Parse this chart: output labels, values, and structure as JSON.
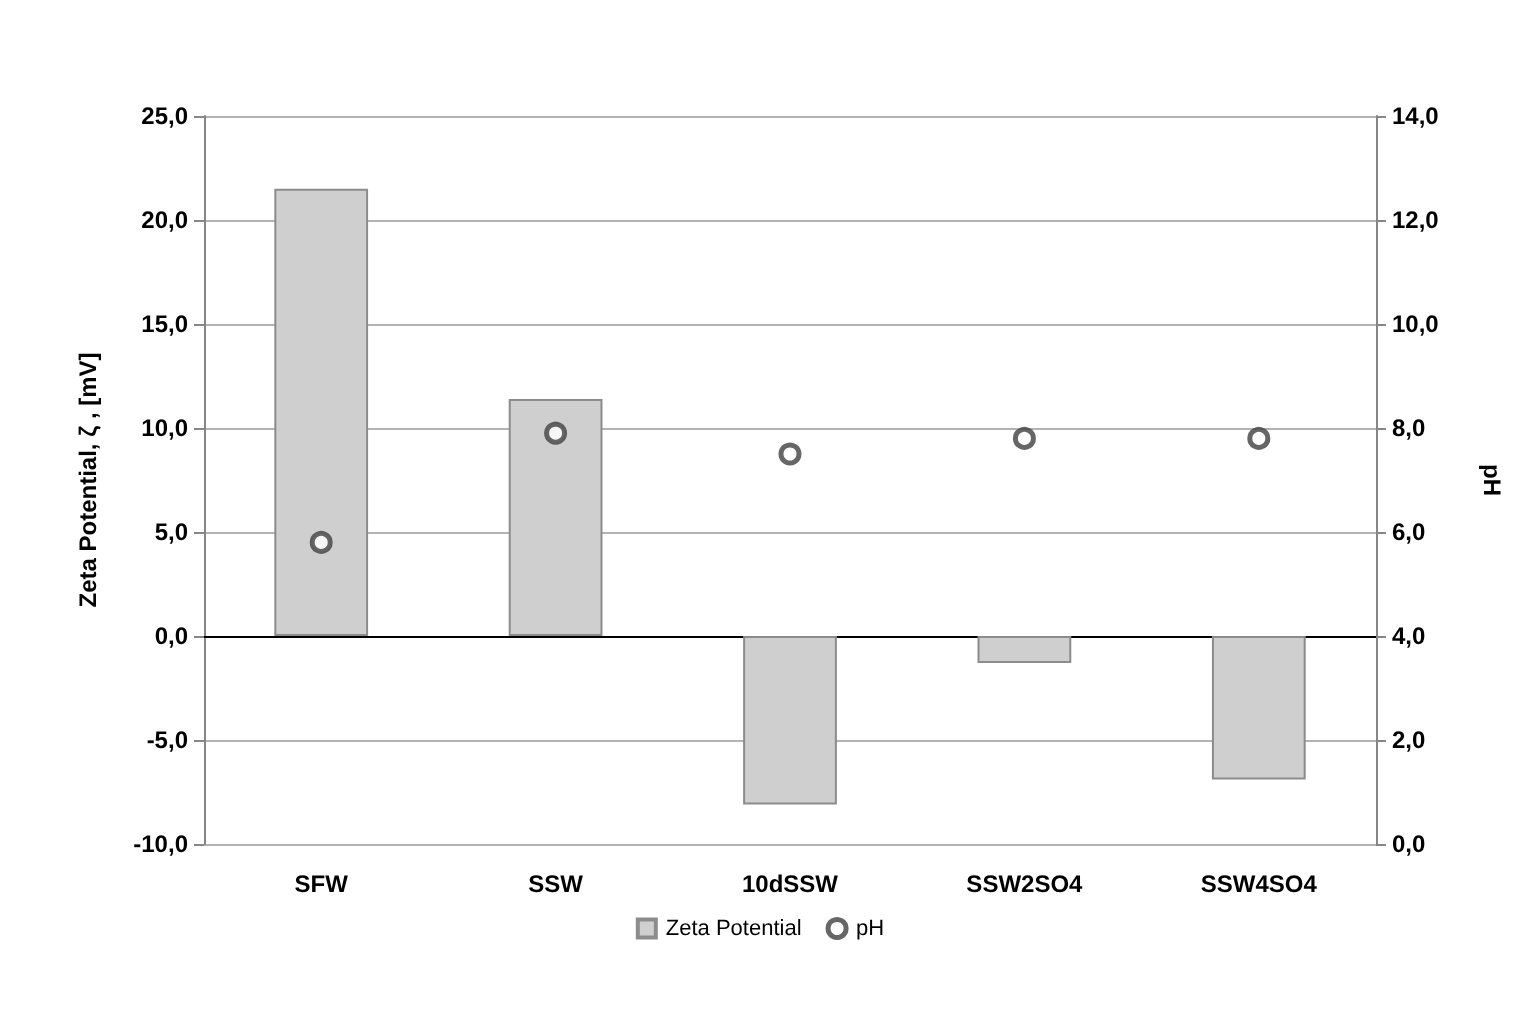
{
  "chart_data": {
    "type": "bar",
    "categories": [
      "SFW",
      "SSW",
      "10dSSW",
      "SSW2SO4",
      "SSW4SO4"
    ],
    "ylabel": "Zeta Potential, ζ , [mV]",
    "y2label": "pH",
    "series": [
      {
        "name": "Zeta Potential",
        "color": "#d0cfd0",
        "values": [
          21.5,
          11.4,
          -8.1,
          -1.3,
          -6.9
        ]
      },
      {
        "name": "pH",
        "type": "scatter",
        "axis": "y2",
        "color": "#404040",
        "marker": "circle",
        "values": [
          5.8,
          7.9,
          7.5,
          7.8,
          7.8
        ]
      }
    ],
    "ylim": [
      -10,
      25
    ],
    "yticks": [
      {
        "value": -10,
        "label": "-10,0"
      },
      {
        "value": -5,
        "label": "-5,0"
      },
      {
        "value": 0,
        "label": "0,0"
      },
      {
        "value": 5,
        "label": "5,0"
      },
      {
        "value": 10,
        "label": "10,0"
      },
      {
        "value": 15,
        "label": "15,0"
      },
      {
        "value": 20,
        "label": "20,0"
      },
      {
        "value": 25,
        "label": "25,0"
      }
    ],
    "y2lim": [
      0,
      14
    ],
    "y2ticks": [
      {
        "value": 0,
        "label": "0,0"
      },
      {
        "value": 2,
        "label": "2,0"
      },
      {
        "value": 4,
        "label": "4,0"
      },
      {
        "value": 6,
        "label": "6,0"
      },
      {
        "value": 8,
        "label": "8,0"
      },
      {
        "value": 10,
        "label": "10,0"
      },
      {
        "value": 12,
        "label": "12,0"
      },
      {
        "value": 14,
        "label": "14,0"
      }
    ],
    "grid": "y",
    "legend": "bottom"
  }
}
